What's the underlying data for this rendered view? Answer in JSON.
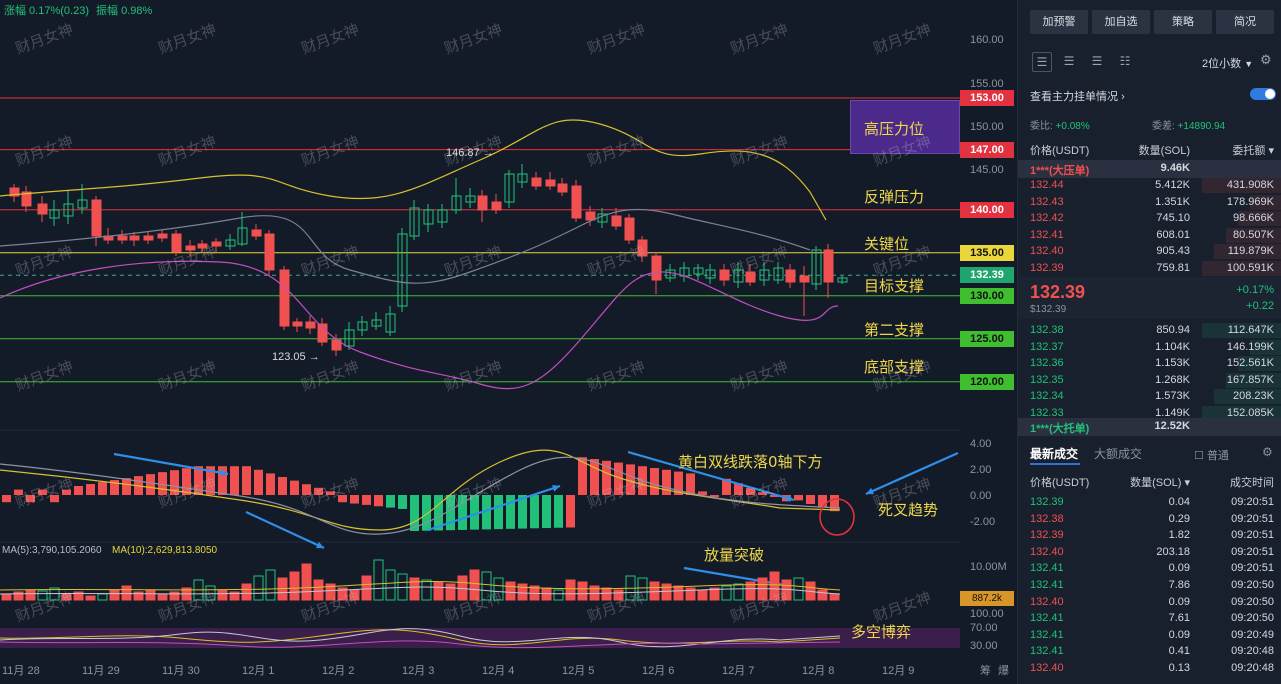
{
  "top_info": {
    "change": "涨幅 0.17%(0.23)",
    "amplitude": "振幅 0.98%"
  },
  "price_axis": [
    "160.00",
    "155.00",
    "150.00",
    "145.00"
  ],
  "levels": [
    {
      "price": "153.00",
      "color": "#e2313f",
      "text_color": "#ffffff",
      "annotation": "高压力位"
    },
    {
      "price": "147.00",
      "color": "#e2313f",
      "text_color": "#ffffff",
      "annotation": ""
    },
    {
      "price": "140.00",
      "color": "#e2313f",
      "text_color": "#ffffff",
      "annotation": "反弹压力"
    },
    {
      "price": "135.00",
      "color": "#e8d63a",
      "text_color": "#111111",
      "annotation": "关键位"
    },
    {
      "price": "132.39",
      "color": "#1fa66f",
      "text_color": "#ffffff",
      "annotation": "目标支撑"
    },
    {
      "price": "130.00",
      "color": "#3fbf2f",
      "text_color": "#111111",
      "annotation": ""
    },
    {
      "price": "125.00",
      "color": "#3fbf2f",
      "text_color": "#111111",
      "annotation": "第二支撑"
    },
    {
      "price": "120.00",
      "color": "#3fbf2f",
      "text_color": "#111111",
      "annotation": "底部支撑"
    }
  ],
  "high_label": "146.87 →",
  "low_label": "123.05 →",
  "macd_axis": [
    "4.00",
    "2.00",
    "0.00",
    "-2.00"
  ],
  "macd_annotations": {
    "cross_down": "黄白双线跌落0轴下方",
    "death_cross": "死叉趋势"
  },
  "volume": {
    "ma5": "MA(5):3,790,105.2060",
    "ma10": "MA(10):2,629,813.8050",
    "axis_top": "10.00M",
    "current": "887.2k",
    "annotation": "放量突破"
  },
  "osc": {
    "axis": [
      "100.00",
      "70.00",
      "30.00"
    ],
    "annotation": "多空博弈"
  },
  "dates": [
    "11月 28",
    "11月 29",
    "11月 30",
    "12月 1",
    "12月 2",
    "12月 3",
    "12月 4",
    "12月 5",
    "12月 6",
    "12月 7",
    "12月 8",
    "12月 9"
  ],
  "corner_icons": [
    "筹",
    "爆"
  ],
  "watermark": "财月女神",
  "panel": {
    "buttons": [
      "加预警",
      "加自选",
      "策略",
      "简况"
    ],
    "decimals": "2位小数",
    "main_orders": "查看主力挂单情况",
    "bid_ratio_label": "委比:",
    "bid_ratio": "+0.08%",
    "bid_diff_label": "委差:",
    "bid_diff": "+14890.94",
    "headers": [
      "价格(USDT)",
      "数量(SOL)",
      "委托额"
    ],
    "big_ask_label": "1***(大压单)",
    "big_ask_value": "9.46K",
    "asks": [
      [
        "132.44",
        "5.412K",
        "431.908K"
      ],
      [
        "132.43",
        "1.351K",
        "178.969K"
      ],
      [
        "132.42",
        "745.10",
        "98.666K"
      ],
      [
        "132.41",
        "608.01",
        "80.507K"
      ],
      [
        "132.40",
        "905.43",
        "119.879K"
      ],
      [
        "132.39",
        "759.81",
        "100.591K"
      ]
    ],
    "last_price": "132.39",
    "last_price_usd": "$132.39",
    "change_pct": "+0.17%",
    "change_abs": "+0.22",
    "bids": [
      [
        "132.38",
        "850.94",
        "112.647K"
      ],
      [
        "132.37",
        "1.104K",
        "146.199K"
      ],
      [
        "132.36",
        "1.153K",
        "152.561K"
      ],
      [
        "132.35",
        "1.268K",
        "167.857K"
      ],
      [
        "132.34",
        "1.573K",
        "208.23K"
      ],
      [
        "132.33",
        "1.149K",
        "152.085K"
      ]
    ],
    "big_bid_label": "1***(大托单)",
    "big_bid_value": "12.52K",
    "trade_tabs": [
      "最新成交",
      "大额成交"
    ],
    "normal_label": "普通",
    "trade_headers": [
      "价格(USDT)",
      "数量(SOL)",
      "成交时间"
    ],
    "trades": [
      [
        "132.39",
        "0.04",
        "09:20:51",
        "green"
      ],
      [
        "132.38",
        "0.29",
        "09:20:51",
        "red"
      ],
      [
        "132.39",
        "1.82",
        "09:20:51",
        "red"
      ],
      [
        "132.40",
        "203.18",
        "09:20:51",
        "red"
      ],
      [
        "132.41",
        "0.09",
        "09:20:51",
        "green"
      ],
      [
        "132.41",
        "7.86",
        "09:20:50",
        "green"
      ],
      [
        "132.40",
        "0.09",
        "09:20:50",
        "red"
      ],
      [
        "132.41",
        "7.61",
        "09:20:50",
        "green"
      ],
      [
        "132.41",
        "0.09",
        "09:20:49",
        "green"
      ],
      [
        "132.41",
        "0.41",
        "09:20:48",
        "green"
      ],
      [
        "132.40",
        "0.13",
        "09:20:48",
        "red"
      ]
    ]
  },
  "colors": {
    "up": "#21c17a",
    "down": "#f0504f",
    "accent": "#2f6fe0"
  }
}
